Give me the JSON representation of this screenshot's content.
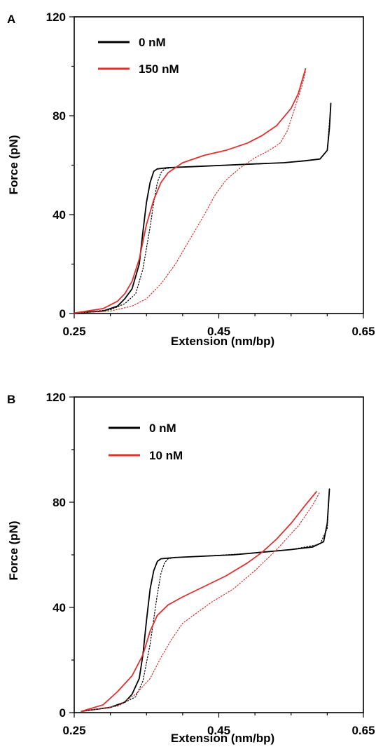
{
  "chart_data": [
    {
      "panel": "A",
      "type": "line",
      "xlabel": "Extension (nm/bp)",
      "ylabel": "Force (pN)",
      "xlim": [
        0.25,
        0.65
      ],
      "ylim": [
        0,
        120
      ],
      "xticks": [
        "0.25",
        "0.45",
        "0.65"
      ],
      "yticks": [
        "0",
        "40",
        "80",
        "120"
      ],
      "legend_position": "top-left",
      "series": [
        {
          "name": "0 nM",
          "color": "#000000",
          "style": "solid",
          "x": [
            0.25,
            0.29,
            0.31,
            0.32,
            0.33,
            0.34,
            0.345,
            0.35,
            0.355,
            0.36,
            0.365,
            0.38,
            0.42,
            0.46,
            0.5,
            0.54,
            0.57,
            0.59,
            0.6,
            0.603,
            0.605
          ],
          "y": [
            0.2,
            1.0,
            3.0,
            6.0,
            10.0,
            20.0,
            33.0,
            45.0,
            53.0,
            57.5,
            58.5,
            59.0,
            59.5,
            60.0,
            60.5,
            61.0,
            61.8,
            62.5,
            66.0,
            75.0,
            85.0
          ]
        },
        {
          "name": "",
          "color": "#000000",
          "style": "dotted",
          "x": [
            0.25,
            0.3,
            0.32,
            0.335,
            0.345,
            0.355,
            0.36,
            0.365,
            0.37,
            0.375,
            0.385,
            0.42,
            0.48,
            0.54,
            0.59,
            0.6,
            0.605
          ],
          "y": [
            0.2,
            1.5,
            4.0,
            8.0,
            18.0,
            35.0,
            45.0,
            53.0,
            57.0,
            58.5,
            59.0,
            59.5,
            60.2,
            61.0,
            62.5,
            66.0,
            85.0
          ]
        },
        {
          "name": "150 nM",
          "color": "#e03030",
          "style": "solid",
          "x": [
            0.25,
            0.29,
            0.31,
            0.32,
            0.33,
            0.34,
            0.35,
            0.36,
            0.37,
            0.38,
            0.4,
            0.43,
            0.46,
            0.49,
            0.51,
            0.53,
            0.55,
            0.56,
            0.565,
            0.57
          ],
          "y": [
            0.2,
            2.0,
            5.0,
            8.0,
            13.0,
            22.0,
            36.0,
            46.0,
            53.0,
            57.0,
            61.0,
            64.0,
            66.0,
            69.0,
            72.0,
            76.0,
            83.0,
            89.0,
            94.0,
            99.0
          ]
        },
        {
          "name": "",
          "color": "#e03030",
          "style": "dotted",
          "x": [
            0.25,
            0.3,
            0.33,
            0.35,
            0.37,
            0.39,
            0.41,
            0.43,
            0.445,
            0.46,
            0.48,
            0.5,
            0.52,
            0.535,
            0.545,
            0.555,
            0.565,
            0.57
          ],
          "y": [
            0.2,
            1.0,
            3.0,
            6.0,
            12.0,
            20.0,
            30.0,
            40.0,
            48.0,
            54.0,
            59.0,
            63.0,
            66.0,
            69.0,
            74.0,
            83.0,
            92.0,
            98.0
          ]
        }
      ]
    },
    {
      "panel": "B",
      "type": "line",
      "xlabel": "Extension (nm/bp)",
      "ylabel": "Force (pN)",
      "xlim": [
        0.25,
        0.65
      ],
      "ylim": [
        0,
        120
      ],
      "xticks": [
        "0.25",
        "0.45",
        "0.65"
      ],
      "yticks": [
        "0",
        "40",
        "80",
        "120"
      ],
      "legend_position": "top-left",
      "series": [
        {
          "name": "0 nM",
          "color": "#000000",
          "style": "solid",
          "x": [
            0.26,
            0.3,
            0.32,
            0.33,
            0.34,
            0.345,
            0.35,
            0.355,
            0.36,
            0.365,
            0.37,
            0.39,
            0.43,
            0.47,
            0.51,
            0.55,
            0.58,
            0.595,
            0.6,
            0.603
          ],
          "y": [
            0.5,
            2.0,
            4.0,
            7.0,
            13.0,
            22.0,
            35.0,
            47.0,
            54.0,
            57.5,
            58.5,
            59.0,
            59.5,
            60.0,
            61.0,
            62.0,
            63.0,
            65.0,
            72.0,
            85.0
          ]
        },
        {
          "name": "",
          "color": "#000000",
          "style": "dotted",
          "x": [
            0.26,
            0.31,
            0.335,
            0.345,
            0.355,
            0.365,
            0.37,
            0.375,
            0.38,
            0.39,
            0.43,
            0.49,
            0.55,
            0.59,
            0.6,
            0.603
          ],
          "y": [
            0.5,
            2.5,
            6.0,
            12.0,
            26.0,
            45.0,
            53.0,
            57.0,
            58.5,
            59.0,
            59.5,
            60.5,
            62.0,
            64.0,
            70.0,
            85.0
          ]
        },
        {
          "name": "10 nM",
          "color": "#e03030",
          "style": "solid",
          "x": [
            0.26,
            0.29,
            0.31,
            0.33,
            0.345,
            0.355,
            0.365,
            0.38,
            0.4,
            0.43,
            0.46,
            0.49,
            0.51,
            0.53,
            0.55,
            0.57,
            0.585
          ],
          "y": [
            0.5,
            3.0,
            8.0,
            14.0,
            22.0,
            31.0,
            37.0,
            41.0,
            44.0,
            48.0,
            52.0,
            57.0,
            61.0,
            66.0,
            72.0,
            79.0,
            84.0
          ]
        },
        {
          "name": "",
          "color": "#e03030",
          "style": "dotted",
          "x": [
            0.26,
            0.31,
            0.335,
            0.355,
            0.37,
            0.385,
            0.4,
            0.42,
            0.44,
            0.47,
            0.5,
            0.53,
            0.56,
            0.58,
            0.59
          ],
          "y": [
            0.5,
            2.5,
            7.0,
            13.0,
            21.0,
            28.0,
            34.0,
            38.0,
            42.0,
            47.0,
            54.0,
            62.0,
            71.0,
            79.0,
            84.0
          ]
        }
      ]
    }
  ]
}
